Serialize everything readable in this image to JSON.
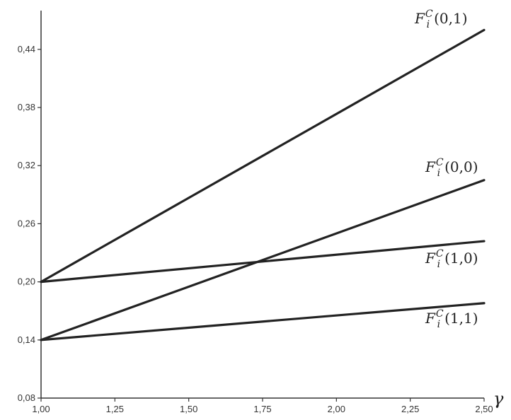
{
  "chart_data": {
    "type": "line",
    "title": "",
    "xlabel": "γ",
    "ylabel": "",
    "xlim": [
      1.0,
      2.5
    ],
    "ylim": [
      0.08,
      0.48
    ],
    "grid": false,
    "x_ticks": [
      1.0,
      1.25,
      1.5,
      1.75,
      2.0,
      2.25,
      2.5
    ],
    "x_tick_labels": [
      "1,00",
      "1,25",
      "1,50",
      "1,75",
      "2,00",
      "2,25",
      "2,50"
    ],
    "y_ticks": [
      0.08,
      0.14,
      0.2,
      0.26,
      0.32,
      0.38,
      0.44
    ],
    "y_tick_labels": [
      "0,08",
      "0,14",
      "0,20",
      "0,26",
      "0,32",
      "0,38",
      "0,44"
    ],
    "series": [
      {
        "name": "F_i^C(0,1)",
        "label_main": "F",
        "label_sub": "i",
        "label_sup": "C",
        "label_args": "(0,1)",
        "x": [
          1.0,
          2.5
        ],
        "y": [
          0.2,
          0.46
        ]
      },
      {
        "name": "F_i^C(0,0)",
        "label_main": "F",
        "label_sub": "i",
        "label_sup": "C",
        "label_args": "(0,0)",
        "x": [
          1.0,
          2.5
        ],
        "y": [
          0.14,
          0.305
        ]
      },
      {
        "name": "F_i^C(1,0)",
        "label_main": "F",
        "label_sub": "i",
        "label_sup": "C",
        "label_args": "(1,0)",
        "x": [
          1.0,
          2.5
        ],
        "y": [
          0.2,
          0.242
        ]
      },
      {
        "name": "F_i^C(1,1)",
        "label_main": "F",
        "label_sub": "i",
        "label_sup": "C",
        "label_args": "(1,1)",
        "x": [
          1.0,
          2.5
        ],
        "y": [
          0.14,
          0.178
        ]
      }
    ]
  }
}
